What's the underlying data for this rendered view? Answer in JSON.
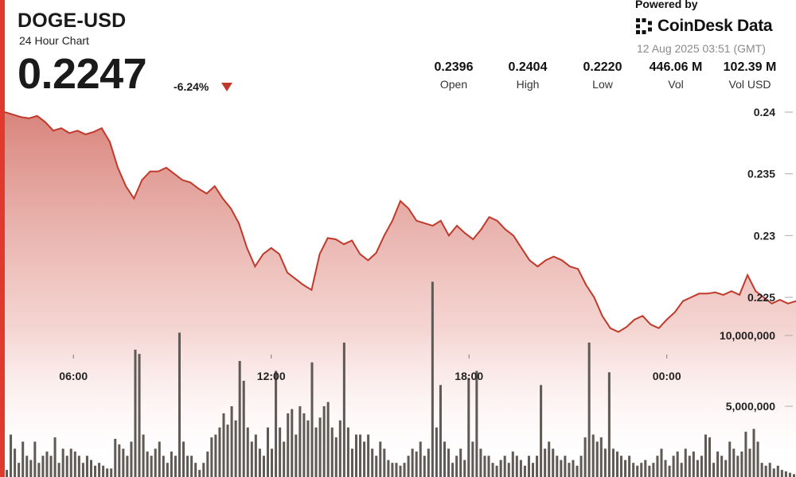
{
  "header": {
    "symbol": "DOGE-USD",
    "subtitle": "24 Hour Chart",
    "price": "0.2247",
    "change": "-6.24%"
  },
  "branding": {
    "powered_by": "Powered by",
    "name": "CoinDesk Data",
    "timestamp": "12 Aug 2025 03:51 (GMT)"
  },
  "stats": [
    {
      "value": "0.2396",
      "label": "Open"
    },
    {
      "value": "0.2404",
      "label": "High"
    },
    {
      "value": "0.2220",
      "label": "Low"
    },
    {
      "value": "446.06 M",
      "label": "Vol"
    },
    {
      "value": "102.39 M",
      "label": "Vol USD"
    }
  ],
  "colors": {
    "accent": "#e03a2f",
    "line": "#c0392b",
    "volume_bar": "#5f5a55",
    "down": "#c0392b"
  },
  "chart_data": {
    "type": "area",
    "price_axis": {
      "ticks": [
        0.24,
        0.235,
        0.23,
        0.225
      ],
      "tick_labels": [
        "0.24",
        "0.235",
        "0.23",
        "0.225"
      ],
      "ylim": [
        0.2218,
        0.2405
      ]
    },
    "volume_axis": {
      "ticks": [
        10000000,
        5000000
      ],
      "tick_labels": [
        "10,000,000",
        "5,000,000"
      ],
      "ylim": [
        0,
        15000000
      ]
    },
    "time_axis": {
      "labels": [
        "06:00",
        "12:00",
        "18:00",
        "00:00"
      ],
      "label_index": [
        17,
        66,
        115,
        164
      ],
      "count": 197
    },
    "price_series": [
      [
        0,
        0.24
      ],
      [
        2,
        0.2398
      ],
      [
        4,
        0.2396
      ],
      [
        6,
        0.2395
      ],
      [
        8,
        0.2397
      ],
      [
        10,
        0.2392
      ],
      [
        12,
        0.2385
      ],
      [
        14,
        0.2387
      ],
      [
        16,
        0.2383
      ],
      [
        18,
        0.2385
      ],
      [
        20,
        0.2382
      ],
      [
        22,
        0.2384
      ],
      [
        24,
        0.2387
      ],
      [
        26,
        0.2376
      ],
      [
        28,
        0.2355
      ],
      [
        30,
        0.234
      ],
      [
        32,
        0.233
      ],
      [
        34,
        0.2345
      ],
      [
        36,
        0.2352
      ],
      [
        38,
        0.2352
      ],
      [
        40,
        0.2355
      ],
      [
        42,
        0.235
      ],
      [
        44,
        0.2345
      ],
      [
        46,
        0.2343
      ],
      [
        48,
        0.2338
      ],
      [
        50,
        0.2334
      ],
      [
        52,
        0.234
      ],
      [
        54,
        0.233
      ],
      [
        56,
        0.2322
      ],
      [
        58,
        0.231
      ],
      [
        60,
        0.229
      ],
      [
        62,
        0.2275
      ],
      [
        64,
        0.2285
      ],
      [
        66,
        0.229
      ],
      [
        68,
        0.2285
      ],
      [
        70,
        0.227
      ],
      [
        72,
        0.2265
      ],
      [
        74,
        0.226
      ],
      [
        76,
        0.2256
      ],
      [
        78,
        0.2285
      ],
      [
        80,
        0.2298
      ],
      [
        82,
        0.2297
      ],
      [
        84,
        0.2293
      ],
      [
        86,
        0.2296
      ],
      [
        88,
        0.2285
      ],
      [
        90,
        0.228
      ],
      [
        92,
        0.2286
      ],
      [
        94,
        0.23
      ],
      [
        96,
        0.2312
      ],
      [
        98,
        0.2328
      ],
      [
        100,
        0.2322
      ],
      [
        102,
        0.2312
      ],
      [
        104,
        0.231
      ],
      [
        106,
        0.2308
      ],
      [
        108,
        0.2312
      ],
      [
        110,
        0.23
      ],
      [
        112,
        0.2308
      ],
      [
        114,
        0.2302
      ],
      [
        116,
        0.2297
      ],
      [
        118,
        0.2305
      ],
      [
        120,
        0.2315
      ],
      [
        122,
        0.2312
      ],
      [
        124,
        0.2305
      ],
      [
        126,
        0.23
      ],
      [
        128,
        0.229
      ],
      [
        130,
        0.228
      ],
      [
        132,
        0.2275
      ],
      [
        134,
        0.228
      ],
      [
        136,
        0.2283
      ],
      [
        138,
        0.228
      ],
      [
        140,
        0.2275
      ],
      [
        142,
        0.2273
      ],
      [
        144,
        0.226
      ],
      [
        146,
        0.225
      ],
      [
        148,
        0.2235
      ],
      [
        150,
        0.2225
      ],
      [
        152,
        0.2222
      ],
      [
        154,
        0.2226
      ],
      [
        156,
        0.2232
      ],
      [
        158,
        0.2235
      ],
      [
        160,
        0.2228
      ],
      [
        162,
        0.2225
      ],
      [
        164,
        0.2232
      ],
      [
        166,
        0.2238
      ],
      [
        168,
        0.2247
      ],
      [
        170,
        0.225
      ],
      [
        172,
        0.2253
      ],
      [
        174,
        0.2253
      ],
      [
        176,
        0.2254
      ],
      [
        178,
        0.2252
      ],
      [
        180,
        0.2255
      ],
      [
        182,
        0.2252
      ],
      [
        184,
        0.2268
      ],
      [
        186,
        0.2255
      ],
      [
        188,
        0.225
      ],
      [
        190,
        0.2245
      ],
      [
        192,
        0.2248
      ],
      [
        194,
        0.2245
      ],
      [
        196,
        0.2247
      ]
    ],
    "volume_series": [
      500000,
      3000000,
      2000000,
      1000000,
      2500000,
      1500000,
      1200000,
      2500000,
      1000000,
      1500000,
      1800000,
      1500000,
      2800000,
      1000000,
      2000000,
      1500000,
      2000000,
      1800000,
      1500000,
      1000000,
      1500000,
      1200000,
      800000,
      1000000,
      800000,
      600000,
      600000,
      2700000,
      2300000,
      2000000,
      1500000,
      2500000,
      9000000,
      8700000,
      3000000,
      1800000,
      1500000,
      2000000,
      2500000,
      1500000,
      1000000,
      1800000,
      1500000,
      10200000,
      2500000,
      1500000,
      1500000,
      1000000,
      500000,
      1000000,
      1800000,
      2800000,
      3000000,
      3500000,
      4500000,
      3700000,
      5000000,
      4000000,
      8200000,
      6800000,
      3500000,
      2500000,
      3000000,
      2000000,
      1500000,
      3500000,
      2000000,
      7500000,
      3500000,
      2500000,
      4500000,
      4800000,
      3000000,
      5000000,
      4500000,
      4000000,
      8100000,
      3500000,
      4200000,
      5000000,
      5300000,
      3500000,
      2800000,
      4000000,
      9500000,
      3500000,
      2000000,
      3000000,
      3000000,
      2500000,
      3000000,
      2000000,
      1500000,
      2500000,
      2000000,
      1200000,
      1000000,
      1000000,
      800000,
      1000000,
      1500000,
      2000000,
      1800000,
      2500000,
      1500000,
      2000000,
      13800000,
      3500000,
      6500000,
      2500000,
      2000000,
      1000000,
      1500000,
      2000000,
      1200000,
      7000000,
      2500000,
      7500000,
      2000000,
      1500000,
      1500000,
      1000000,
      800000,
      1200000,
      1500000,
      1000000,
      1800000,
      1500000,
      1200000,
      800000,
      1500000,
      1000000,
      1500000,
      6500000,
      2000000,
      2500000,
      2000000,
      1500000,
      1200000,
      1500000,
      1000000,
      1200000,
      800000,
      1500000,
      2800000,
      9500000,
      3000000,
      2500000,
      2800000,
      2000000,
      7400000,
      2000000,
      1800000,
      1500000,
      1200000,
      1500000,
      1000000,
      800000,
      1000000,
      1200000,
      800000,
      1000000,
      1500000,
      2000000,
      1200000,
      800000,
      1500000,
      1800000,
      1000000,
      2000000,
      1500000,
      1800000,
      1200000,
      1500000,
      3000000,
      2800000,
      1000000,
      1800000,
      1500000,
      1200000,
      2500000,
      2000000,
      1500000,
      1800000,
      3200000,
      2000000,
      3400000,
      2500000,
      1000000,
      800000,
      1000000,
      600000,
      800000,
      500000,
      400000,
      300000,
      200000
    ]
  }
}
